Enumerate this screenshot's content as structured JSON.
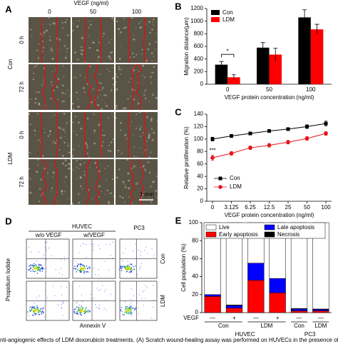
{
  "figure": {
    "A": {
      "label": "A",
      "header": "VEGF (ng/ml)",
      "columns": [
        "0",
        "50",
        "100"
      ],
      "groups": [
        "Con",
        "LDM"
      ],
      "rows": [
        "0 h",
        "72 h"
      ],
      "scale_bar": "1 mm"
    },
    "D": {
      "label": "D",
      "cell_lines": [
        "HUVEC",
        "PC3"
      ],
      "conditions": [
        "w/o VEGF",
        "w/VEGF"
      ],
      "rows": [
        "Con",
        "LDM"
      ],
      "y_label": "Propidium Iodide",
      "x_label": "Annexin V"
    },
    "caption": "nti-angiogenic effects of LDM doxorubicin treatments. (A) Scratch wound-healing assay was performed on HUVECs in the presence of LDM doxorubicin and VEGF. (B) Qu"
  },
  "chart_data": [
    {
      "panel": "B",
      "type": "bar",
      "y_label": "Migration distance(μm)",
      "x_label": "VEGF protein concentration (ng/ml)",
      "categories": [
        "0",
        "50",
        "100"
      ],
      "series": [
        {
          "name": "Con",
          "color": "#000000",
          "values": [
            310,
            580,
            1060
          ],
          "errors": [
            50,
            80,
            120
          ]
        },
        {
          "name": "LDM",
          "color": "#ff0000",
          "values": [
            110,
            470,
            870
          ],
          "errors": [
            40,
            100,
            80
          ]
        }
      ],
      "ylim": [
        0,
        1200
      ],
      "yticks": [
        0,
        200,
        400,
        600,
        800,
        1000,
        1200
      ],
      "legend": "upper left",
      "annotations": [
        {
          "text": "*"
        }
      ]
    },
    {
      "panel": "C",
      "type": "line",
      "y_label": "Relative proliferation (%)",
      "x_label": "VEGF protein concentration (ng/ml)",
      "categories": [
        "0",
        "3.125",
        "6.25",
        "12.5",
        "25",
        "50",
        "100"
      ],
      "series": [
        {
          "name": "Con",
          "color": "#000000",
          "marker": "square",
          "values": [
            100,
            105,
            109,
            113,
            116,
            120,
            125
          ],
          "errors": [
            3,
            2,
            2,
            2,
            2,
            3,
            4
          ]
        },
        {
          "name": "LDM",
          "color": "#e8131b",
          "marker": "circle",
          "values": [
            70,
            77,
            86,
            90,
            95,
            101,
            109
          ],
          "errors": [
            4,
            3,
            3,
            3,
            3,
            3,
            3
          ]
        }
      ],
      "ylim": [
        0,
        140
      ],
      "yticks": [
        0,
        20,
        40,
        60,
        80,
        100,
        120,
        140
      ],
      "legend": "lower right",
      "annotations": [
        {
          "text": "***"
        }
      ]
    },
    {
      "panel": "E",
      "type": "stacked_bar",
      "y_label": "Cell population (%)",
      "x_row_label": "VEGF",
      "categories": [
        "—",
        "+",
        "—",
        "+",
        "—",
        "—"
      ],
      "subgroups": [
        "Con",
        "LDM",
        "Con",
        "LDM"
      ],
      "groups": [
        "HUVEC",
        "PC3"
      ],
      "series": [
        {
          "name": "Early apoptosis",
          "color": "#ff0000",
          "values": [
            18,
            5,
            36,
            22,
            2,
            2
          ]
        },
        {
          "name": "Late apoptosis",
          "color": "#0000ff",
          "values": [
            2,
            3,
            19,
            16,
            2,
            1.5
          ]
        },
        {
          "name": "Necrosis",
          "color": "#000000",
          "values": [
            0,
            0.5,
            0,
            0,
            0.5,
            0.5
          ]
        },
        {
          "name": "Live",
          "color": "#ffffff",
          "values": [
            80,
            91.5,
            45,
            62,
            95.5,
            96
          ]
        }
      ],
      "ylim": [
        0,
        100
      ],
      "yticks": [
        0,
        20,
        40,
        60,
        80,
        100
      ],
      "legend": "upper right"
    }
  ]
}
